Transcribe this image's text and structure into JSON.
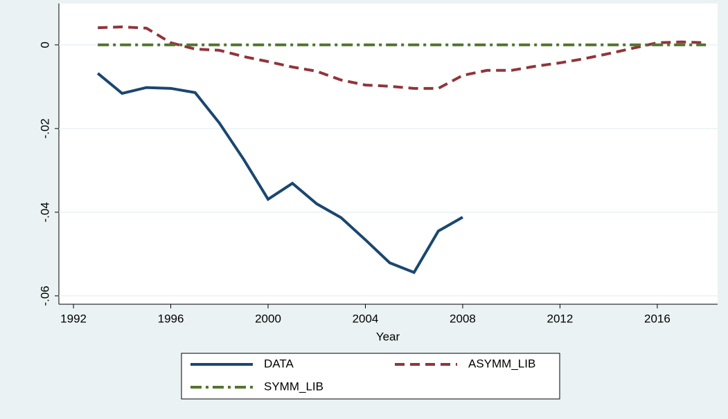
{
  "chart_data": {
    "type": "line",
    "x_label": "Year",
    "x": [
      1993,
      1994,
      1995,
      1996,
      1997,
      1998,
      1999,
      2000,
      2001,
      2002,
      2003,
      2004,
      2005,
      2006,
      2007,
      2008,
      2009,
      2010,
      2011,
      2012,
      2013,
      2014,
      2015,
      2016,
      2017,
      2018
    ],
    "series": [
      {
        "name": "DATA",
        "color": "#1a476f",
        "dash": "solid",
        "values": [
          -0.0068,
          -0.0116,
          -0.0102,
          -0.0104,
          -0.0114,
          -0.0187,
          -0.0274,
          -0.0369,
          -0.0331,
          -0.038,
          -0.0413,
          -0.0466,
          -0.0521,
          -0.0544,
          -0.0445,
          -0.0412,
          null,
          null,
          null,
          null,
          null,
          null,
          null,
          null,
          null,
          null
        ]
      },
      {
        "name": "ASYMM_LIB",
        "color": "#90353b",
        "dash": "dash",
        "values": [
          0.0041,
          0.0043,
          0.004,
          0.0005,
          -0.001,
          -0.0013,
          -0.0028,
          -0.004,
          -0.0053,
          -0.0063,
          -0.0084,
          -0.0096,
          -0.0099,
          -0.0104,
          -0.0104,
          -0.0073,
          -0.0061,
          -0.0061,
          -0.0051,
          -0.0043,
          -0.0033,
          -0.0021,
          -0.0008,
          0.0005,
          0.0007,
          0.0005
        ]
      },
      {
        "name": "SYMM_LIB",
        "color": "#55752f",
        "dash": "dashdot",
        "values": [
          0,
          0,
          0,
          0,
          0,
          0,
          0,
          0,
          0,
          0,
          0,
          0,
          0,
          0,
          0,
          0,
          0,
          0,
          0,
          0,
          0,
          0,
          0,
          0,
          0,
          0
        ]
      }
    ],
    "xlim": [
      1991.4,
      2018.48
    ],
    "xticks": [
      1992,
      1996,
      2000,
      2004,
      2008,
      2012,
      2016
    ],
    "ylim": [
      -0.062,
      0.0099
    ],
    "yticks": [
      0,
      {
        "value": -0.02,
        "label": "-.02"
      },
      {
        "value": -0.04,
        "label": "-.04"
      },
      {
        "value": -0.06,
        "label": "-.06"
      }
    ],
    "grid": true
  }
}
